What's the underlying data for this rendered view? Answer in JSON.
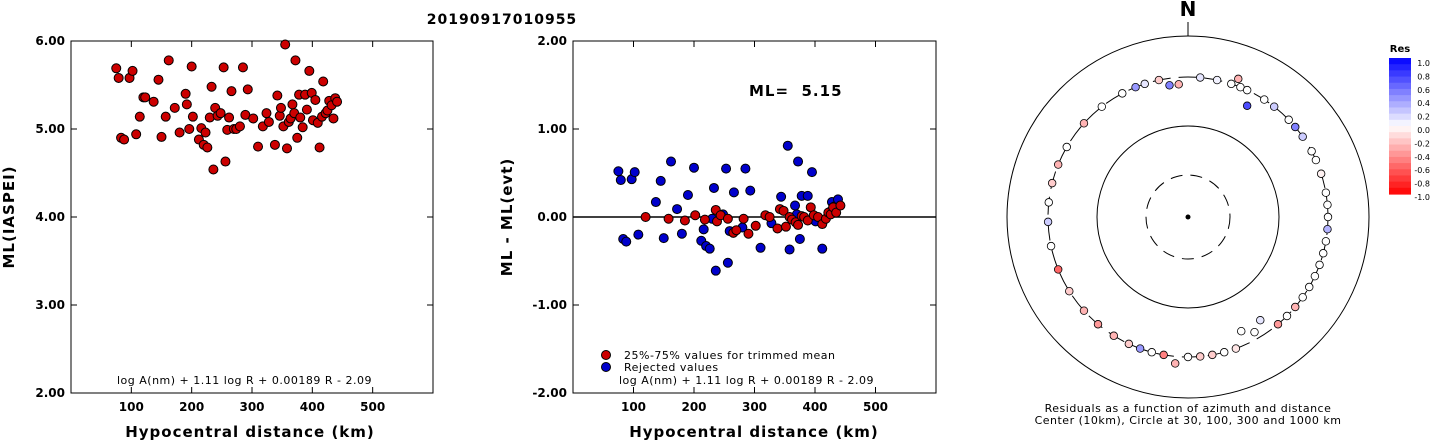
{
  "title": "20190917010955",
  "chart_data": [
    {
      "type": "scatter",
      "xlabel": "Hypocentral distance (km)",
      "ylabel": "ML(IASPEI)",
      "xlim": [
        0,
        600
      ],
      "ylim": [
        2.0,
        6.0
      ],
      "xticks": [
        "100",
        "200",
        "300",
        "400",
        "500"
      ],
      "yticks": [
        "2.00",
        "3.00",
        "4.00",
        "5.00",
        "6.00"
      ],
      "formula": "log A(nm) + 1.11 log R + 0.00189 R - 2.09",
      "points": [
        [
          75,
          5.69
        ],
        [
          79,
          5.58
        ],
        [
          83,
          4.9
        ],
        [
          88,
          4.88
        ],
        [
          97,
          5.58
        ],
        [
          102,
          5.66
        ],
        [
          108,
          4.94
        ],
        [
          114,
          5.14
        ],
        [
          120,
          5.36
        ],
        [
          123,
          5.36
        ],
        [
          137,
          5.31
        ],
        [
          145,
          5.56
        ],
        [
          150,
          4.91
        ],
        [
          157,
          5.14
        ],
        [
          162,
          5.78
        ],
        [
          172,
          5.24
        ],
        [
          180,
          4.96
        ],
        [
          190,
          5.4
        ],
        [
          192,
          5.28
        ],
        [
          196,
          5.0
        ],
        [
          200,
          5.71
        ],
        [
          202,
          5.14
        ],
        [
          212,
          4.88
        ],
        [
          216,
          5.01
        ],
        [
          220,
          4.82
        ],
        [
          223,
          4.96
        ],
        [
          226,
          4.79
        ],
        [
          230,
          5.13
        ],
        [
          233,
          5.48
        ],
        [
          236,
          4.54
        ],
        [
          239,
          5.24
        ],
        [
          243,
          5.15
        ],
        [
          248,
          5.18
        ],
        [
          253,
          5.7
        ],
        [
          256,
          4.63
        ],
        [
          259,
          4.99
        ],
        [
          262,
          5.13
        ],
        [
          266,
          5.43
        ],
        [
          270,
          5.0
        ],
        [
          274,
          5.0
        ],
        [
          280,
          5.03
        ],
        [
          285,
          5.7
        ],
        [
          289,
          5.16
        ],
        [
          293,
          5.45
        ],
        [
          302,
          5.12
        ],
        [
          310,
          4.8
        ],
        [
          318,
          5.03
        ],
        [
          324,
          5.18
        ],
        [
          328,
          5.08
        ],
        [
          338,
          4.82
        ],
        [
          342,
          5.38
        ],
        [
          346,
          5.15
        ],
        [
          348,
          5.24
        ],
        [
          352,
          5.03
        ],
        [
          355,
          5.96
        ],
        [
          358,
          4.78
        ],
        [
          361,
          5.08
        ],
        [
          364,
          5.12
        ],
        [
          367,
          5.28
        ],
        [
          370,
          5.18
        ],
        [
          372,
          5.78
        ],
        [
          375,
          4.9
        ],
        [
          378,
          5.39
        ],
        [
          380,
          5.13
        ],
        [
          384,
          5.02
        ],
        [
          388,
          5.39
        ],
        [
          391,
          5.22
        ],
        [
          395,
          5.66
        ],
        [
          399,
          5.41
        ],
        [
          401,
          5.1
        ],
        [
          405,
          5.33
        ],
        [
          409,
          5.07
        ],
        [
          412,
          4.79
        ],
        [
          416,
          5.14
        ],
        [
          418,
          5.54
        ],
        [
          422,
          5.18
        ],
        [
          425,
          5.21
        ],
        [
          428,
          5.32
        ],
        [
          432,
          5.27
        ],
        [
          435,
          5.12
        ],
        [
          438,
          5.35
        ],
        [
          441,
          5.31
        ]
      ]
    },
    {
      "type": "scatter",
      "xlabel": "Hypocentral distance (km)",
      "ylabel": "ML - ML(evt)",
      "xlim": [
        0,
        600
      ],
      "ylim": [
        -2.0,
        2.0
      ],
      "xticks": [
        "100",
        "200",
        "300",
        "400",
        "500"
      ],
      "yticks": [
        "-2.00",
        "-1.00",
        "0.00",
        "1.00",
        "2.00"
      ],
      "annotation": "ML=  5.15",
      "formula": "log A(nm) + 1.11 log R + 0.00189 R - 2.09",
      "legend": {
        "placement": "bottom-left",
        "entries": [
          "25%-75% values for trimmed mean",
          "Rejected values"
        ]
      },
      "series": [
        {
          "name": "25%-75% values for trimmed mean",
          "color": "#cc0000",
          "points": [
            [
              120,
              0.0
            ],
            [
              158,
              -0.02
            ],
            [
              185,
              -0.04
            ],
            [
              202,
              0.02
            ],
            [
              218,
              -0.03
            ],
            [
              236,
              0.08
            ],
            [
              238,
              -0.05
            ],
            [
              244,
              0.02
            ],
            [
              256,
              -0.02
            ],
            [
              265,
              -0.18
            ],
            [
              270,
              -0.15
            ],
            [
              282,
              -0.02
            ],
            [
              290,
              -0.19
            ],
            [
              302,
              -0.1
            ],
            [
              318,
              0.02
            ],
            [
              325,
              0.0
            ],
            [
              338,
              -0.13
            ],
            [
              342,
              0.09
            ],
            [
              348,
              0.07
            ],
            [
              352,
              -0.11
            ],
            [
              358,
              0.0
            ],
            [
              362,
              -0.03
            ],
            [
              368,
              -0.06
            ],
            [
              372,
              -0.09
            ],
            [
              378,
              0.01
            ],
            [
              382,
              0.0
            ],
            [
              388,
              -0.04
            ],
            [
              393,
              0.11
            ],
            [
              398,
              0.02
            ],
            [
              405,
              0.0
            ],
            [
              412,
              -0.08
            ],
            [
              418,
              -0.02
            ],
            [
              422,
              0.05
            ],
            [
              426,
              0.03
            ],
            [
              430,
              0.11
            ],
            [
              435,
              0.05
            ],
            [
              442,
              0.13
            ]
          ]
        },
        {
          "name": "Rejected values",
          "color": "#0000cc",
          "points": [
            [
              75,
              0.52
            ],
            [
              79,
              0.42
            ],
            [
              83,
              -0.25
            ],
            [
              88,
              -0.28
            ],
            [
              97,
              0.43
            ],
            [
              102,
              0.51
            ],
            [
              108,
              -0.2
            ],
            [
              137,
              0.17
            ],
            [
              145,
              0.41
            ],
            [
              150,
              -0.24
            ],
            [
              162,
              0.63
            ],
            [
              172,
              0.09
            ],
            [
              180,
              -0.19
            ],
            [
              190,
              0.25
            ],
            [
              200,
              0.56
            ],
            [
              212,
              -0.27
            ],
            [
              216,
              -0.14
            ],
            [
              220,
              -0.33
            ],
            [
              226,
              -0.36
            ],
            [
              230,
              -0.02
            ],
            [
              233,
              0.33
            ],
            [
              236,
              -0.61
            ],
            [
              248,
              0.03
            ],
            [
              253,
              0.55
            ],
            [
              256,
              -0.52
            ],
            [
              259,
              -0.16
            ],
            [
              266,
              0.28
            ],
            [
              280,
              -0.12
            ],
            [
              285,
              0.55
            ],
            [
              293,
              0.3
            ],
            [
              310,
              -0.35
            ],
            [
              328,
              -0.07
            ],
            [
              344,
              0.23
            ],
            [
              355,
              0.81
            ],
            [
              358,
              -0.37
            ],
            [
              364,
              -0.03
            ],
            [
              367,
              0.13
            ],
            [
              370,
              0.03
            ],
            [
              372,
              0.63
            ],
            [
              375,
              -0.25
            ],
            [
              378,
              0.24
            ],
            [
              388,
              0.24
            ],
            [
              395,
              0.51
            ],
            [
              401,
              -0.05
            ],
            [
              412,
              -0.36
            ],
            [
              425,
              0.06
            ],
            [
              428,
              0.17
            ],
            [
              432,
              0.12
            ],
            [
              438,
              0.2
            ]
          ]
        }
      ]
    },
    {
      "type": "polar",
      "north_label": "N",
      "caption_1": "Residuals as a function of azimuth and distance",
      "caption_2": "Center (10km), Circle at 30, 100, 300 and 1000 km",
      "colorbar": {
        "title": "Res",
        "ticks": [
          "1.0",
          "0.8",
          "0.6",
          "0.4",
          "0.2",
          "0.0",
          "-0.2",
          "-0.4",
          "-0.6",
          "-0.8",
          "-1.0"
        ]
      },
      "stations": [
        [
          5,
          1,
          0.1
        ],
        [
          12,
          1,
          0.05
        ],
        [
          18,
          1,
          0.0
        ],
        [
          22,
          1,
          0.0
        ],
        [
          25,
          1,
          0.0
        ],
        [
          20,
          1.05,
          -0.3
        ],
        [
          28,
          0.9,
          0.7
        ],
        [
          33,
          1,
          0.0
        ],
        [
          38,
          1,
          0.2
        ],
        [
          46,
          1,
          0.0
        ],
        [
          50,
          1,
          0.5
        ],
        [
          55,
          1,
          0.2
        ],
        [
          62,
          1,
          0.0
        ],
        [
          66,
          1,
          0.0
        ],
        [
          72,
          1,
          -0.05
        ],
        [
          80,
          1,
          0.0
        ],
        [
          85,
          1,
          0.0
        ],
        [
          90,
          1,
          0.0
        ],
        [
          95,
          1,
          0.3
        ],
        [
          100,
          1,
          0.0
        ],
        [
          105,
          1,
          0.0
        ],
        [
          110,
          1,
          0.0
        ],
        [
          115,
          1,
          0.0
        ],
        [
          120,
          1,
          0.0
        ],
        [
          125,
          1,
          0.0
        ],
        [
          130,
          1,
          -0.3
        ],
        [
          135,
          1,
          0.0
        ],
        [
          140,
          1,
          -0.4
        ],
        [
          145,
          0.9,
          0.1
        ],
        [
          150,
          0.95,
          0.0
        ],
        [
          155,
          0.9,
          0.0
        ],
        [
          160,
          1,
          -0.1
        ],
        [
          165,
          1,
          0.0
        ],
        [
          170,
          1,
          -0.2
        ],
        [
          175,
          1,
          -0.2
        ],
        [
          180,
          1,
          0.0
        ],
        [
          185,
          1.05,
          -0.3
        ],
        [
          190,
          1,
          -0.5
        ],
        [
          195,
          1,
          0.0
        ],
        [
          200,
          1,
          0.4
        ],
        [
          205,
          1,
          -0.2
        ],
        [
          212,
          1,
          -0.3
        ],
        [
          220,
          1,
          -0.4
        ],
        [
          228,
          1,
          -0.3
        ],
        [
          238,
          1,
          -0.2
        ],
        [
          248,
          1,
          -0.6
        ],
        [
          258,
          1,
          0.0
        ],
        [
          268,
          1,
          0.2
        ],
        [
          276,
          1,
          0.0
        ],
        [
          284,
          1,
          -0.2
        ],
        [
          292,
          1,
          -0.3
        ],
        [
          300,
          1,
          0.0
        ],
        [
          312,
          1,
          -0.3
        ],
        [
          322,
          1,
          0.0
        ],
        [
          332,
          1,
          0.0
        ],
        [
          338,
          1,
          0.4
        ],
        [
          342,
          1,
          0.1
        ],
        [
          348,
          1,
          -0.2
        ],
        [
          352,
          0.95,
          0.5
        ],
        [
          356,
          0.95,
          -0.3
        ]
      ]
    }
  ]
}
